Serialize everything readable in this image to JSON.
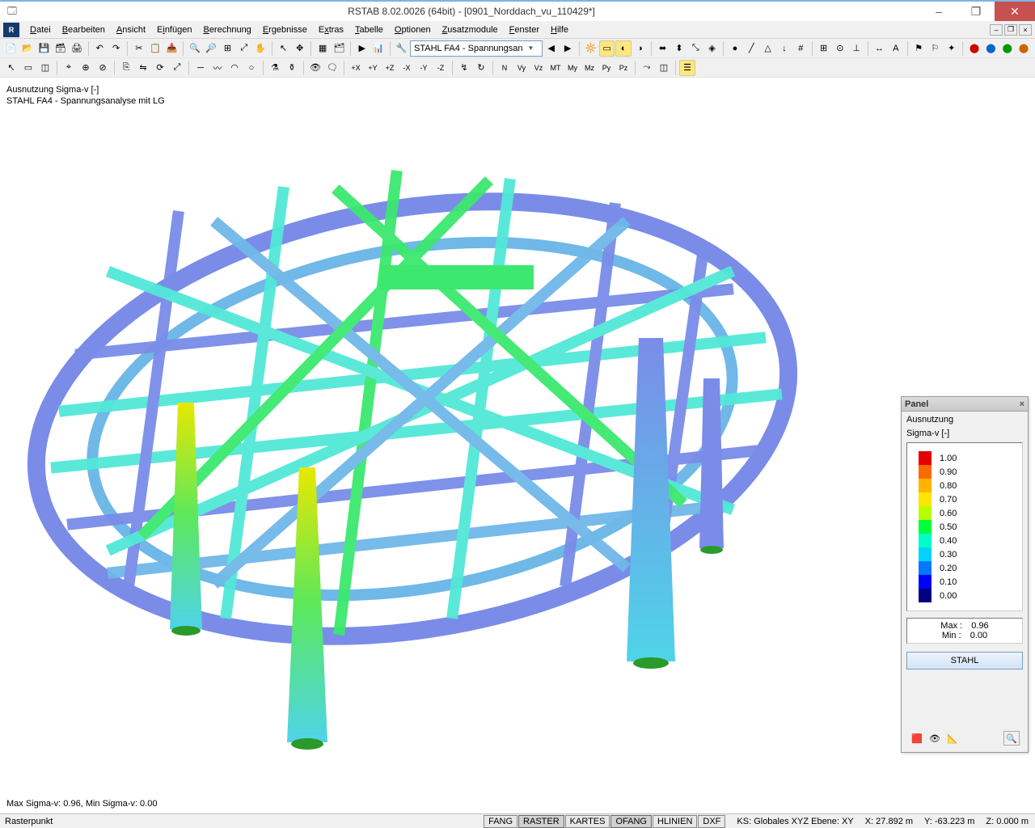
{
  "window": {
    "title": "RSTAB 8.02.0026 (64bit) - [0901_Norddach_vu_110429*]",
    "minimize": "–",
    "maximize": "❐",
    "close": "✕"
  },
  "menu": [
    "Datei",
    "Bearbeiten",
    "Ansicht",
    "Einfügen",
    "Berechnung",
    "Ergebnisse",
    "Extras",
    "Tabelle",
    "Optionen",
    "Zusatzmodule",
    "Fenster",
    "Hilfe"
  ],
  "combo1": "STAHL FA4 - Spannungsan",
  "viewport": {
    "line1": "Ausnutzung Sigma-v [-]",
    "line2": "STAHL FA4 - Spannungsanalyse mit LG",
    "footer": "Max Sigma-v: 0.96, Min Sigma-v: 0.00"
  },
  "panel": {
    "title": "Panel",
    "sub1": "Ausnutzung",
    "sub2": "Sigma-v [-]",
    "legend": [
      {
        "c": "#e60000",
        "v": "1.00"
      },
      {
        "c": "#ff6a00",
        "v": "0.90"
      },
      {
        "c": "#ffb400",
        "v": "0.80"
      },
      {
        "c": "#ffe600",
        "v": "0.70"
      },
      {
        "c": "#b8ff00",
        "v": "0.60"
      },
      {
        "c": "#00ff3c",
        "v": "0.50"
      },
      {
        "c": "#00ffc8",
        "v": "0.40"
      },
      {
        "c": "#00d4ff",
        "v": "0.30"
      },
      {
        "c": "#0078ff",
        "v": "0.20"
      },
      {
        "c": "#0000ff",
        "v": "0.10"
      },
      {
        "c": "#000080",
        "v": "0.00"
      }
    ],
    "max_label": "Max  :",
    "max": "0.96",
    "min_label": "Min  :",
    "min": "0.00",
    "button": "STAHL"
  },
  "status": {
    "left": "Rasterpunkt",
    "toggles": [
      "FANG",
      "RASTER",
      "KARTES",
      "OFANG",
      "HLINIEN",
      "DXF"
    ],
    "ks": "KS: Globales XYZ  Ebene: XY",
    "x": "X:  27.892 m",
    "y": "Y:  -63.223 m",
    "z": "Z:  0.000 m"
  },
  "colors": {
    "title_accent": "#7db4e8",
    "close": "#c75050",
    "panel_border": "#9a9a9a"
  }
}
